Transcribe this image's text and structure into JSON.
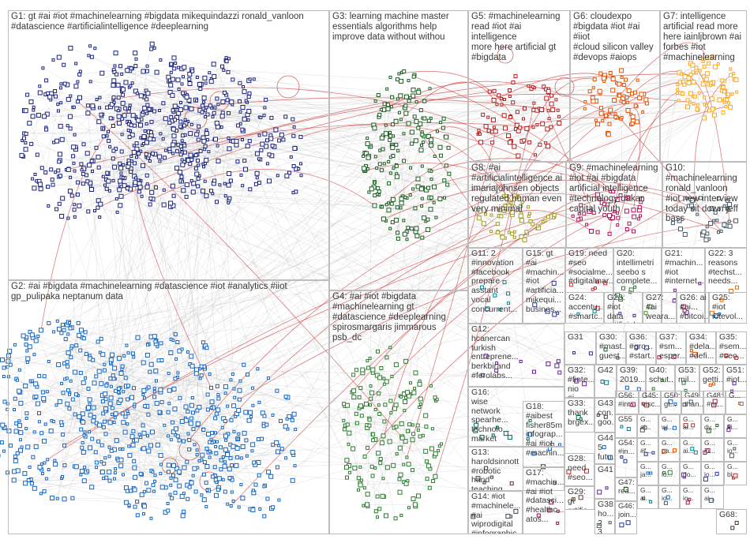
{
  "groups": [
    {
      "id": "G1",
      "label": "G1: gt #ai #iot #machinelearning #bigdata mikequindazzi ronald_vanloon\n#datascience #artificialintelligence #deeplearning",
      "color": "#1a237e"
    },
    {
      "id": "G2",
      "label": "G2: #ai #bigdata #machinelearning #datascience #iot #analytics #iiot\ngp_pulipaka neptanum data",
      "color": "#1565c0"
    },
    {
      "id": "G3",
      "label": "G3: learning machine master\nessentials algorithms help\nimprove data without withou",
      "color": "#1b5e20"
    },
    {
      "id": "G4",
      "label": "G4: #ai #iot #bigdata\n#machinelearning gt\n#datascience #deeplearning\nspirosmargaris jimmarous psb_dc",
      "color": "#2e7d32"
    },
    {
      "id": "G5",
      "label": "G5: #machinelearning\nread #iot #ai intelligence\nmore here artificial gt\n#bigdata",
      "color": "#b71c1c"
    },
    {
      "id": "G6",
      "label": "G6: cloudexpo\n#bigdata #iot #ai #iiot\n#cloud silicon valley\n#devops #aiops",
      "color": "#e65100"
    },
    {
      "id": "G7",
      "label": "G7: intelligence\nartificial read more\nhere iainljbrown #ai\nforbes #iot\n#machinelearning",
      "color": "#f9a825"
    },
    {
      "id": "G8",
      "label": "G8: #ai\n#artificialintelligence ai\nimariajohnsen objects\nregulated human even\nvery minimal",
      "color": "#9e9d24"
    },
    {
      "id": "G9",
      "label": "G9: #machinelearning\n#iot #ai #bigdata\nartificial intelligence\n#technology dakar\ncapital youth",
      "color": "#ad1457"
    },
    {
      "id": "G10",
      "label": "G10:\n#machinelearning\nronald_vanloon\n#iot new interview\ntoday sit down jeff\nbass",
      "color": "#455a64"
    },
    {
      "id": "G11",
      "label": "G11: 2\n#innovation\n#facebook\nprepare\nasstant\nvocal\nconcurrent...",
      "color": "#00838f"
    },
    {
      "id": "G12",
      "label": "G12:\nhcanercan\nturkish\nentreprene...\nberkbirand\n#ferolabs...",
      "color": "#6a1b9a"
    },
    {
      "id": "G13",
      "label": "G13:\nharoldsinnott\n#robotic\nhand\nteaching\nitself fine...",
      "color": "#4e342e"
    },
    {
      "id": "G14",
      "label": "G14: #iot\n#machinele...\n#ai\nwiprodigital\n#infographic\n#bigdata...",
      "color": "#37474f"
    },
    {
      "id": "G15",
      "label": "G15: gt\n#ai\n#machin...\n#iot\n#artificia...\nmikequi...\nbusines...",
      "color": "#283593"
    },
    {
      "id": "G16",
      "label": "G16:\nwise\nnetwork\nspearhe...\ntechnolo...\nmarket\nansuz...",
      "color": "#00695c"
    },
    {
      "id": "G17",
      "label": "G17:\n#machin...\n#ai #iot\n#datasci...\n#healthc...\natos...",
      "color": "#880e4f"
    },
    {
      "id": "G18",
      "label": "G18:\n#aibest\nfisher85m\ninfograp...\n#ai #iot\n#machin...",
      "color": "#1565c0"
    },
    {
      "id": "G19",
      "label": "G19: need\n#seo\n#socialme...\n#digitalmar...",
      "color": "#c62828"
    },
    {
      "id": "G20",
      "label": "G20:\nintellimetri\nseebo s\ncomplete...",
      "color": "#2e7d32"
    },
    {
      "id": "G21",
      "label": "G21:\n#machin...\n#iot\n#internet...",
      "color": "#6a1b9a"
    },
    {
      "id": "G22",
      "label": "G22: 3\nreasons\n#techst...\nneeds...",
      "color": "#ef6c00"
    },
    {
      "id": "G23",
      "label": "G23: #iot\ndata\nartificial...",
      "color": "#283593"
    },
    {
      "id": "G24",
      "label": "G24:\naccentu...\n#smartc...",
      "color": "#00838f"
    },
    {
      "id": "G25",
      "label": "G25:\n#iot\niotevol...",
      "color": "#1565c0"
    },
    {
      "id": "G26",
      "label": "G26: ai\n#ai...\n#bitcoi...",
      "color": "#ad1457"
    },
    {
      "id": "G27",
      "label": "G27:\n#ai\nweara...",
      "color": "#558b2f"
    },
    {
      "id": "G28",
      "label": "G28:\nneed\n#seo...",
      "color": "#c62828"
    },
    {
      "id": "G29",
      "label": "G29:\ngt\nartific...",
      "color": "#5d4037"
    },
    {
      "id": "G30",
      "label": "G30:\n#mast...\nguest...",
      "color": "#1b5e20"
    },
    {
      "id": "G31",
      "label": "G31",
      "color": "#283593"
    },
    {
      "id": "G32",
      "label": "G32:\n#finte...\nnio ai...",
      "color": "#6a1b9a"
    },
    {
      "id": "G33",
      "label": "G33:\nthank\nbrgex...",
      "color": "#00695c"
    },
    {
      "id": "G34",
      "label": "G34:\n#dela...\n#defi...",
      "color": "#e65100"
    },
    {
      "id": "G35",
      "label": "G35:\n#sem...\n#seo...",
      "color": "#c62828"
    },
    {
      "id": "G36",
      "label": "G36:\n#gro...\n#start...",
      "color": "#283593"
    },
    {
      "id": "G37",
      "label": "G37:\n#sm...\nesper...",
      "color": "#ad1457"
    },
    {
      "id": "G38",
      "label": "G38:\nho...\n2 3...",
      "color": "#455a64"
    },
    {
      "id": "G39",
      "label": "G39:\n2019...",
      "color": "#1565c0"
    },
    {
      "id": "G40",
      "label": "G40:\nschut...",
      "color": "#2e7d32"
    },
    {
      "id": "G41",
      "label": "G41",
      "color": "#6a1b9a"
    },
    {
      "id": "G42",
      "label": "G42",
      "color": "#00838f"
    },
    {
      "id": "G43",
      "label": "G43:\ncon...\ngoo...",
      "color": "#4e342e"
    },
    {
      "id": "G44",
      "label": "G44:\n5\nfutu...",
      "color": "#1565c0"
    },
    {
      "id": "G45",
      "label": "G45:\nvisc...",
      "color": "#c62828"
    },
    {
      "id": "G46",
      "label": "G46:\njoin...",
      "color": "#283593"
    },
    {
      "id": "G47",
      "label": "G47:\nrea...",
      "color": "#1b5e20"
    },
    {
      "id": "G48",
      "label": "G48:\n#m...",
      "color": "#ad1457"
    },
    {
      "id": "G49",
      "label": "G49:\nthan...",
      "color": "#455a64"
    },
    {
      "id": "G50",
      "label": "G50:\ngt...",
      "color": "#1565c0"
    },
    {
      "id": "G51",
      "label": "G51:\n#iot...",
      "color": "#6a1b9a"
    },
    {
      "id": "G52",
      "label": "G52:\ngetti...",
      "color": "#e65100"
    },
    {
      "id": "G53",
      "label": "G53:\nmil...",
      "color": "#2e7d32"
    },
    {
      "id": "G54",
      "label": "G54:\n#in...",
      "color": "#283593"
    },
    {
      "id": "G55",
      "label": "G55",
      "color": "#00838f"
    },
    {
      "id": "G56",
      "label": "G56:\n#int...",
      "color": "#ad1457"
    },
    {
      "id": "G57",
      "label": "G...\nai...",
      "color": "#455a64"
    },
    {
      "id": "G58",
      "label": "G...\nwi...",
      "color": "#1565c0"
    },
    {
      "id": "G59",
      "label": "G...\nai...",
      "color": "#c62828"
    },
    {
      "id": "G60",
      "label": "G...\ndy...",
      "color": "#1b5e20"
    },
    {
      "id": "G61",
      "label": "G...\n#i...",
      "color": "#6a1b9a"
    },
    {
      "id": "G62",
      "label": "G...\n#f...",
      "color": "#283593"
    },
    {
      "id": "G63",
      "label": "G...\npa...",
      "color": "#e65100"
    },
    {
      "id": "G64",
      "label": "G...\nai...",
      "color": "#00838f"
    },
    {
      "id": "G65",
      "label": "G...\nio...",
      "color": "#ad1457"
    },
    {
      "id": "G66",
      "label": "G...\nio...",
      "color": "#455a64"
    },
    {
      "id": "G67",
      "label": "G...\nja...",
      "color": "#1565c0"
    },
    {
      "id": "G68",
      "label": "G68:",
      "color": "#4e342e"
    },
    {
      "id": "G69",
      "label": "G...\nio...",
      "color": "#2e7d32"
    },
    {
      "id": "G70",
      "label": "G...\ndo...",
      "color": "#6a1b9a"
    },
    {
      "id": "G71",
      "label": "G...\nio...",
      "color": "#283593"
    },
    {
      "id": "G72",
      "label": "G...\nbi...",
      "color": "#c62828"
    },
    {
      "id": "G73",
      "label": "G...\nai...",
      "color": "#00838f"
    },
    {
      "id": "G74",
      "label": "G...\nio...",
      "color": "#1565c0"
    },
    {
      "id": "G75",
      "label": "G...\nio...",
      "color": "#ad1457"
    },
    {
      "id": "G76",
      "label": "G...\nai...",
      "color": "#455a64"
    },
    {
      "id": "G77",
      "label": "G...",
      "color": "#e65100"
    }
  ],
  "intergroup_edge_color": "#c62828",
  "edge_color": "#9e9e9e"
}
